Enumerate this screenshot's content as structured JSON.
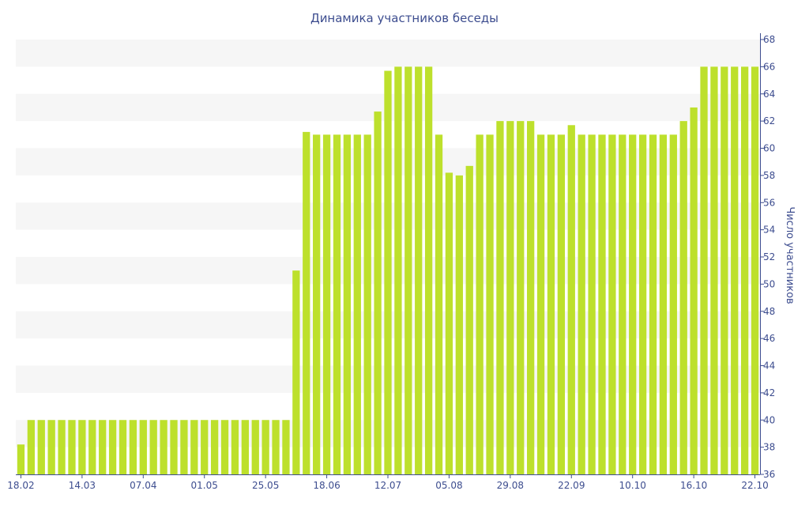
{
  "chart_data": {
    "type": "bar",
    "title": "Динамика участников беседы",
    "ylabel": "Число участников",
    "xlabel": "",
    "ylim": [
      36,
      68
    ],
    "ytick_step": 2,
    "y_axis_side": "right",
    "grid": "alternating horizontal bands",
    "bar_color": "#bde02c",
    "band_color": "#f6f6f6",
    "text_color": "#3d4d8f",
    "axis_color": "#3d4d8f",
    "x_tick_labels": [
      "18.02",
      "14.03",
      "07.04",
      "01.05",
      "25.05",
      "18.06",
      "12.07",
      "05.08",
      "29.08",
      "22.09",
      "10.10",
      "16.10",
      "22.10"
    ],
    "x_tick_positions": [
      0,
      6,
      12,
      18,
      24,
      30,
      36,
      42,
      48,
      54,
      60,
      66,
      72
    ],
    "values": [
      38.2,
      40,
      40,
      40,
      40,
      40,
      40,
      40,
      40,
      40,
      40,
      40,
      40,
      40,
      40,
      40,
      40,
      40,
      40,
      40,
      40,
      40,
      40,
      40,
      40,
      40,
      40,
      51,
      61.2,
      61,
      61,
      61,
      61,
      61,
      61,
      62.7,
      65.7,
      66,
      66,
      66,
      66,
      61,
      58.2,
      58,
      58.7,
      61,
      61,
      62,
      62,
      62,
      62,
      61,
      61,
      61,
      61.7,
      61,
      61,
      61,
      61,
      61,
      61,
      61,
      61,
      61,
      61,
      62,
      63,
      66,
      66,
      66,
      66,
      66,
      66
    ]
  }
}
